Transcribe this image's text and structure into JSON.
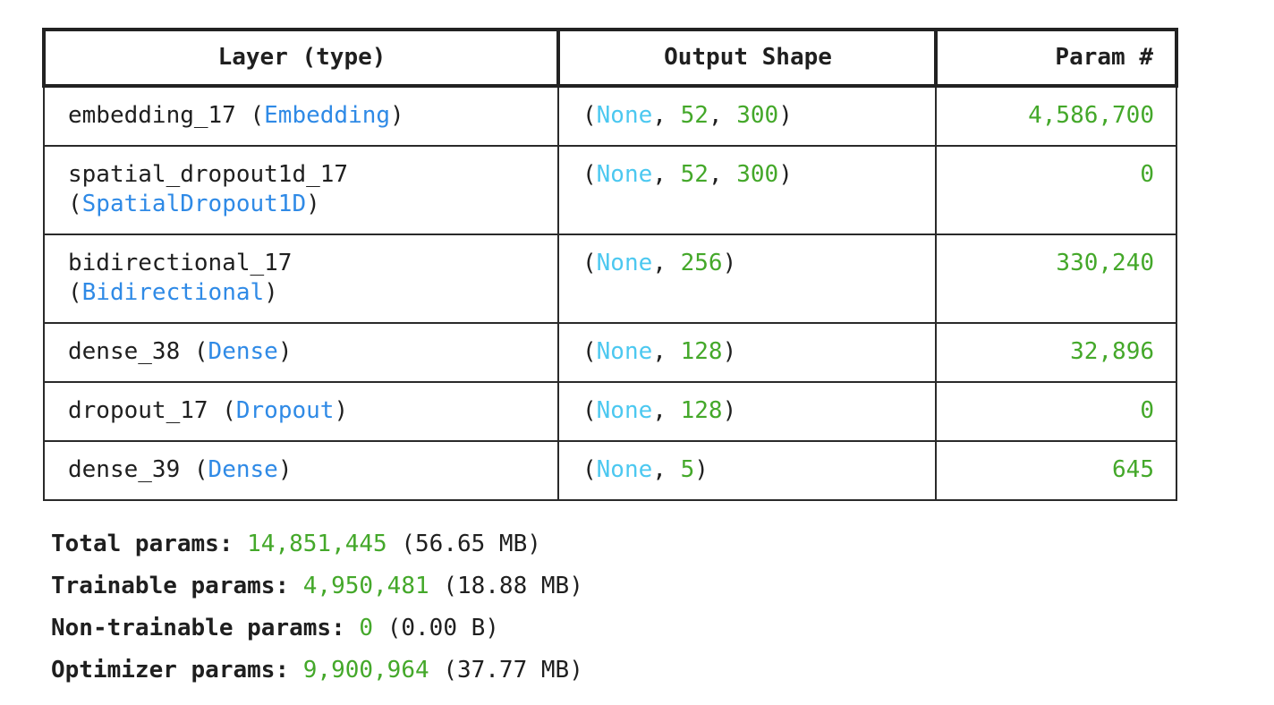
{
  "table": {
    "headers": [
      "Layer (type)",
      "Output Shape",
      "Param #"
    ],
    "rows": [
      {
        "name": "embedding_17",
        "type": "Embedding",
        "wrap": false,
        "shape_none": "None",
        "shape_dims": [
          "52",
          "300"
        ],
        "params": "4,586,700"
      },
      {
        "name": "spatial_dropout1d_17",
        "type": "SpatialDropout1D",
        "wrap": true,
        "shape_none": "None",
        "shape_dims": [
          "52",
          "300"
        ],
        "params": "0"
      },
      {
        "name": "bidirectional_17",
        "type": "Bidirectional",
        "wrap": true,
        "shape_none": "None",
        "shape_dims": [
          "256"
        ],
        "params": "330,240"
      },
      {
        "name": "dense_38",
        "type": "Dense",
        "wrap": false,
        "shape_none": "None",
        "shape_dims": [
          "128"
        ],
        "params": "32,896"
      },
      {
        "name": "dropout_17",
        "type": "Dropout",
        "wrap": false,
        "shape_none": "None",
        "shape_dims": [
          "128"
        ],
        "params": "0"
      },
      {
        "name": "dense_39",
        "type": "Dense",
        "wrap": false,
        "shape_none": "None",
        "shape_dims": [
          "5"
        ],
        "params": "645"
      }
    ]
  },
  "totals": [
    {
      "label": "Total params:",
      "value": "14,851,445",
      "size": "(56.65 MB)"
    },
    {
      "label": "Trainable params:",
      "value": "4,950,481",
      "size": "(18.88 MB)"
    },
    {
      "label": "Non-trainable params:",
      "value": "0",
      "size": "(0.00 B)"
    },
    {
      "label": "Optimizer params:",
      "value": "9,900,964",
      "size": "(37.77 MB)"
    }
  ],
  "colors": {
    "layer_class": "#2f8ae6",
    "none_keyword": "#4cc8f0",
    "number": "#44a82a",
    "text": "#1f1f1f",
    "border": "#2a2a2a"
  }
}
